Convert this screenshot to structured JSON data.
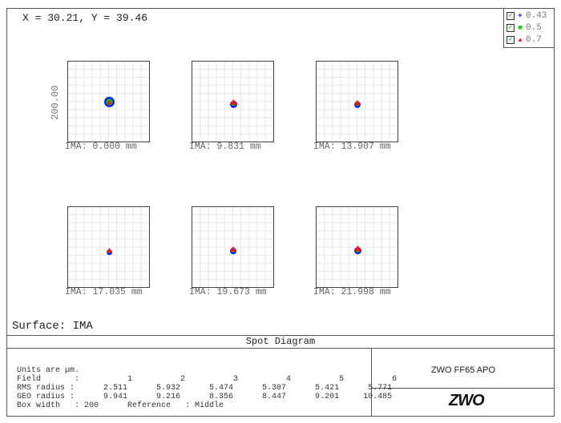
{
  "coord_readout": "X = 30.21, Y = 39.46",
  "legend": [
    {
      "label": "0.43",
      "color": "#0000ff",
      "marker": "+"
    },
    {
      "label": "0.5",
      "color": "#00dd00",
      "marker": "■"
    },
    {
      "label": "0.7",
      "color": "#ff0000",
      "marker": "▲"
    }
  ],
  "y_axis_label": "200.00",
  "fields": [
    {
      "label": "IMA: 0.000 mm"
    },
    {
      "label": "IMA: 9.831 mm"
    },
    {
      "label": "IMA: 13.907 mm"
    },
    {
      "label": "IMA: 17.035 mm"
    },
    {
      "label": "IMA: 19.673 mm"
    },
    {
      "label": "IMA: 21.998 mm"
    }
  ],
  "surface": "Surface: IMA",
  "title": "Spot Diagram",
  "info": {
    "units": "Units are µm.",
    "field_row": "Field       :          1          2          3          4          5          6",
    "rms_row": "RMS radius :      2.511      5.932      5.474      5.307      5.421      5.771",
    "geo_row": "GEO radius :      9.941      9.216      8.356      8.447      9.201     10.485",
    "box_row": "Box width   : 200      Reference   : Middle"
  },
  "product": "ZWO FF65 APO",
  "logo": "ZWO"
}
